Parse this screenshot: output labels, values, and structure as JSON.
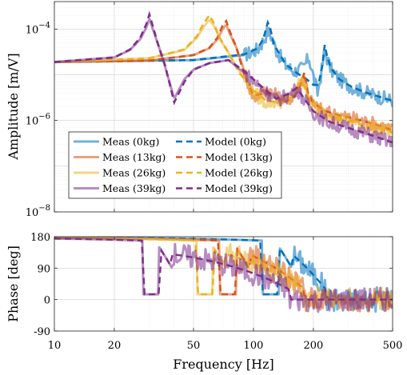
{
  "chart_data": {
    "type": "line",
    "shared_x": {
      "label": "Frequency [Hz]",
      "scale": "log",
      "lim": [
        10,
        500
      ],
      "ticks": [
        10,
        20,
        50,
        100,
        200,
        500
      ],
      "tick_labels": [
        "10",
        "20",
        "50",
        "100",
        "200",
        "500"
      ]
    },
    "grid": true,
    "colors": {
      "0kg": "#0072BD",
      "13kg": "#D95319",
      "26kg": "#EDB120",
      "39kg": "#7E2F8E"
    },
    "masses": [
      {
        "key": "0kg",
        "f1": 120,
        "f2": 230,
        "depth": 0.5
      },
      {
        "key": "13kg",
        "f1": 73,
        "f2": 180,
        "depth": 0.5
      },
      {
        "key": "26kg",
        "f1": 56,
        "f2": 175,
        "depth": 0.5
      },
      {
        "key": "39kg",
        "f1": 30,
        "f2": 150,
        "depth": 0.55
      }
    ],
    "legend": {
      "placement": "bottom-left",
      "entries": [
        {
          "label": "Meas (0kg)",
          "color_key": "0kg",
          "style": "solid"
        },
        {
          "label": "Model (0kg)",
          "color_key": "0kg",
          "style": "dashed"
        },
        {
          "label": "Meas (13kg)",
          "color_key": "13kg",
          "style": "solid"
        },
        {
          "label": "Model (13kg)",
          "color_key": "13kg",
          "style": "dashed"
        },
        {
          "label": "Meas (26kg)",
          "color_key": "26kg",
          "style": "solid"
        },
        {
          "label": "Model (26kg)",
          "color_key": "26kg",
          "style": "dashed"
        },
        {
          "label": "Meas (39kg)",
          "color_key": "39kg",
          "style": "solid"
        },
        {
          "label": "Model (39kg)",
          "color_key": "39kg",
          "style": "dashed"
        }
      ]
    },
    "subplots": [
      {
        "name": "amplitude",
        "ylabel": "Amplitude [m/V]",
        "yscale": "log",
        "ylim": [
          1e-08,
          0.0004
        ],
        "ticks": [
          {
            "value": 1e-08,
            "base": "10",
            "exp": "−8"
          },
          {
            "value": 1e-06,
            "base": "10",
            "exp": "−6"
          },
          {
            "value": 0.0001,
            "base": "10",
            "exp": "−4"
          }
        ],
        "series": [
          {
            "key": "0kg",
            "kind": "meas",
            "x": [
              10,
              50,
              90,
              105,
              112,
              118,
              123,
              130,
              145,
              160,
              178,
              190,
              200,
              210,
              220,
              228,
              235,
              245,
              270,
              310,
              360,
              420,
              500
            ],
            "y": [
              1.9e-05,
              2.1e-05,
              2.7e-05,
              3.6e-05,
              5.5e-05,
              9e-05,
              7e-05,
              3.5e-05,
              1.6e-05,
              1.2e-05,
              1.4e-05,
              2.4e-05,
              9e-06,
              4e-06,
              1.2e-05,
              3.5e-05,
              2.2e-05,
              1.3e-05,
              8e-06,
              5.5e-06,
              4.2e-06,
              3.4e-06,
              2.7e-06
            ]
          },
          {
            "key": "0kg",
            "kind": "model",
            "x": [
              10,
              50,
              90,
              105,
              112,
              118,
              121,
              127,
              145,
              165,
              185,
              200,
              212,
              222,
              228,
              234,
              245,
              270,
              310,
              360,
              420,
              500
            ],
            "y": [
              1.9e-05,
              2.1e-05,
              2.8e-05,
              3.8e-05,
              6e-05,
              0.00014,
              0.00011,
              4.5e-05,
              1.7e-05,
              1.1e-05,
              8e-06,
              6e-06,
              6e-06,
              1.6e-05,
              4.5e-05,
              2.6e-05,
              1.4e-05,
              8e-06,
              5.5e-06,
              4.2e-06,
              3.4e-06,
              2.7e-06
            ]
          },
          {
            "key": "13kg",
            "kind": "meas",
            "x": [
              10,
              30,
              50,
              60,
              66,
              70,
              73,
              76,
              82,
              90,
              100,
              115,
              130,
              145,
              160,
              172,
              180,
              188,
              200,
              230,
              270,
              320,
              380,
              440,
              500
            ],
            "y": [
              1.9e-05,
              2.05e-05,
              2.7e-05,
              3.8e-05,
              6e-05,
              0.0001,
              0.000125,
              8e-05,
              4e-05,
              1.2e-05,
              3e-06,
              5e-06,
              3.5e-06,
              2.8e-06,
              3.5e-06,
              6e-06,
              1e-05,
              4e-06,
              2.2e-06,
              1.5e-06,
              1.3e-06,
              1.1e-06,
              9e-07,
              7.5e-07,
              6e-07
            ]
          },
          {
            "key": "13kg",
            "kind": "model",
            "x": [
              10,
              30,
              50,
              60,
              66,
              70,
              73,
              76,
              82,
              90,
              100,
              115,
              130,
              145,
              160,
              172,
              180,
              188,
              200,
              230,
              270,
              320,
              380,
              440,
              500
            ],
            "y": [
              1.9e-05,
              2.05e-05,
              2.7e-05,
              3.9e-05,
              6.5e-05,
              0.00012,
              0.00015,
              9e-05,
              4e-05,
              1e-05,
              3.5e-06,
              4e-06,
              3e-06,
              2.6e-06,
              3.2e-06,
              6e-06,
              1.1e-05,
              4e-06,
              2.4e-06,
              1.6e-06,
              1.3e-06,
              1.1e-06,
              9e-07,
              7.5e-07,
              6e-07
            ]
          },
          {
            "key": "26kg",
            "kind": "meas",
            "x": [
              10,
              30,
              45,
              52,
              56,
              60,
              64,
              68,
              75,
              85,
              100,
              115,
              130,
              150,
              165,
              175,
              185,
              200,
              230,
              270,
              320,
              380,
              440,
              500
            ],
            "y": [
              1.9e-05,
              2.3e-05,
              3.5e-05,
              6.5e-05,
              0.00011,
              0.00016,
              0.00011,
              6e-05,
              3e-05,
              1.2e-05,
              4e-06,
              2.5e-06,
              2.6e-06,
              2.8e-06,
              5e-06,
              8e-06,
              4e-06,
              2e-06,
              1.4e-06,
              1.1e-06,
              9e-07,
              7.5e-07,
              6.5e-07,
              5.5e-07
            ]
          },
          {
            "key": "26kg",
            "kind": "model",
            "x": [
              10,
              30,
              45,
              52,
              56,
              60,
              63,
              67,
              75,
              85,
              100,
              115,
              130,
              150,
              165,
              175,
              185,
              200,
              230,
              270,
              320,
              380,
              440,
              500
            ],
            "y": [
              1.9e-05,
              2.3e-05,
              3.6e-05,
              7e-05,
              0.00013,
              0.0002,
              0.00014,
              7e-05,
              3e-05,
              1.1e-05,
              4.5e-06,
              2.8e-06,
              2.5e-06,
              2.7e-06,
              5e-06,
              8.5e-06,
              4e-06,
              2.1e-06,
              1.4e-06,
              1.1e-06,
              9e-07,
              7.5e-07,
              6.5e-07,
              5.5e-07
            ]
          },
          {
            "key": "39kg",
            "kind": "meas",
            "x": [
              10,
              20,
              24,
              27,
              29,
              30,
              31,
              33,
              36,
              40,
              45,
              50,
              60,
              75,
              90,
              110,
              130,
              150,
              165,
              180,
              200,
              240,
              290,
              350,
              420,
              500
            ],
            "y": [
              1.9e-05,
              2.4e-05,
              3.5e-05,
              6e-05,
              0.00011,
              0.00017,
              0.00011,
              5e-05,
              1.5e-05,
              3e-06,
              8e-06,
              1.3e-05,
              1.8e-05,
              2.1e-05,
              1.1e-05,
              5e-06,
              2.8e-06,
              3.5e-06,
              5e-06,
              2.8e-06,
              1.5e-06,
              9e-07,
              7e-07,
              5.5e-07,
              4.2e-07,
              3.2e-07
            ]
          },
          {
            "key": "39kg",
            "kind": "model",
            "x": [
              10,
              20,
              24,
              27,
              29,
              30,
              31,
              33,
              36,
              40,
              45,
              50,
              60,
              75,
              90,
              110,
              130,
              150,
              165,
              180,
              200,
              240,
              290,
              350,
              420,
              500
            ],
            "y": [
              1.9e-05,
              2.4e-05,
              3.6e-05,
              6.5e-05,
              0.00013,
              0.00021,
              0.00013,
              5e-05,
              1.6e-05,
              2.5e-06,
              7e-06,
              1.3e-05,
              1.8e-05,
              2.1e-05,
              1.2e-05,
              5.5e-06,
              3e-06,
              3.8e-06,
              5.2e-06,
              3e-06,
              1.6e-06,
              9.5e-07,
              7.2e-07,
              5.6e-07,
              4.3e-07,
              3.3e-07
            ]
          }
        ]
      },
      {
        "name": "phase",
        "ylabel": "Phase [deg]",
        "yscale": "linear",
        "ylim": [
          -90,
          180
        ],
        "ticks": [
          {
            "value": -90,
            "label": "-90"
          },
          {
            "value": 0,
            "label": "0"
          },
          {
            "value": 90,
            "label": "90"
          },
          {
            "value": 180,
            "label": "180"
          }
        ]
      }
    ]
  }
}
